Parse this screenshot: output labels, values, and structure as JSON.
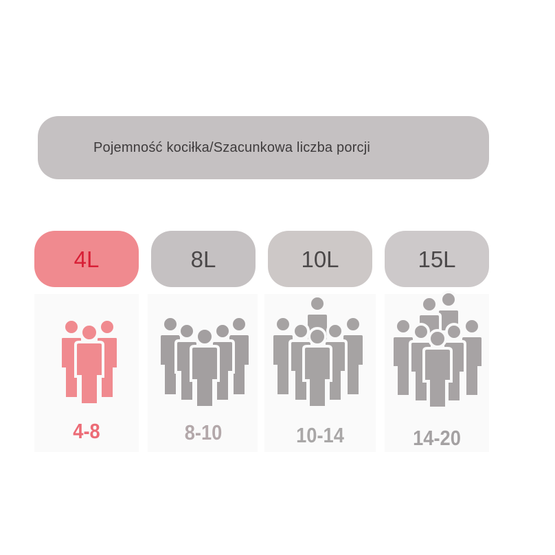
{
  "header": {
    "title": "Pojemność kociłka/Szacunkowa liczba porcji"
  },
  "options": [
    {
      "capacity": "4L",
      "servings": "4-8",
      "selected": true,
      "pill_color": "#f08a8f",
      "pill_text_color": "#d81f36",
      "icon_color": "#f08a8f",
      "range_color": "#ec6b76",
      "people_icon": "group-3-people-icon"
    },
    {
      "capacity": "8L",
      "servings": "8-10",
      "selected": false,
      "pill_color": "#c5c1c2",
      "pill_text_color": "#4b4849",
      "icon_color": "#a39fa0",
      "range_color": "#b3a8aa",
      "people_icon": "group-5-people-icon"
    },
    {
      "capacity": "10L",
      "servings": "10-14",
      "selected": false,
      "pill_color": "#cdc8c7",
      "pill_text_color": "#4b4849",
      "icon_color": "#a6a3a3",
      "range_color": "#a9a7a7",
      "people_icon": "group-7-people-icon"
    },
    {
      "capacity": "15L",
      "servings": "14-20",
      "selected": false,
      "pill_color": "#cdc9ca",
      "pill_text_color": "#4b4849",
      "icon_color": "#a7a3a4",
      "range_color": "#a4a1a2",
      "people_icon": "group-10-people-icon"
    }
  ]
}
